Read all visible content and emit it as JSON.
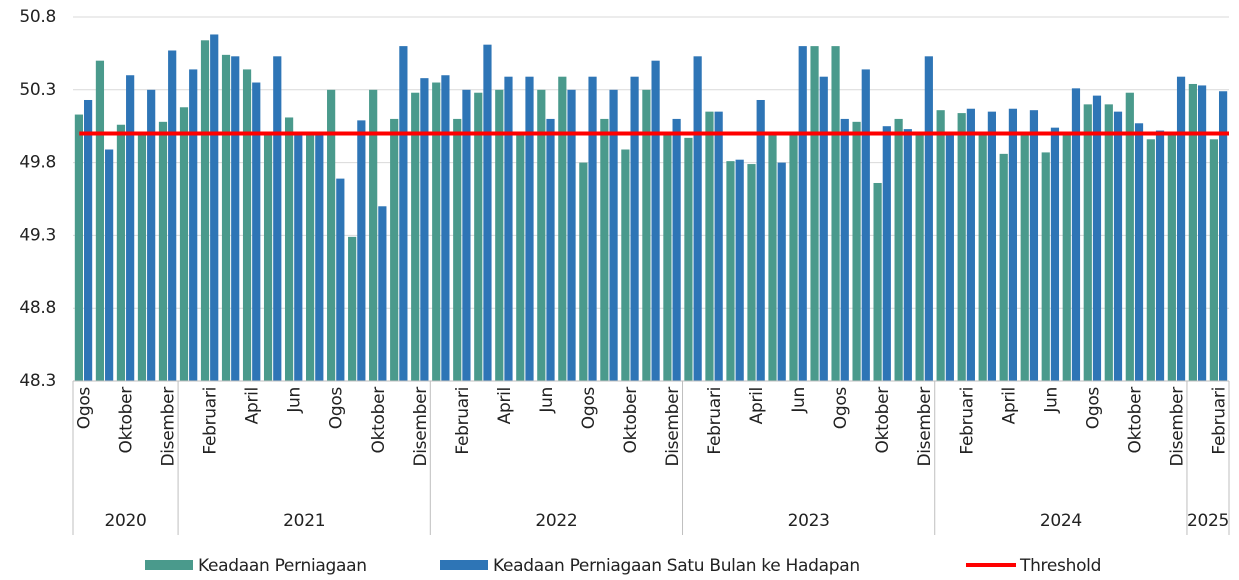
{
  "chart_data": {
    "type": "bar",
    "categories": [
      "Ogos",
      null,
      "Oktober",
      null,
      "Disember",
      null,
      "Februari",
      null,
      "April",
      null,
      "Jun",
      null,
      "Ogos",
      null,
      "Oktober",
      null,
      "Disember",
      null,
      "Februari",
      null,
      "April",
      null,
      "Jun",
      null,
      "Ogos",
      null,
      "Oktober",
      null,
      "Disember",
      null,
      "Februari",
      null,
      "April",
      null,
      "Jun",
      null,
      "Ogos",
      null,
      "Oktober",
      null,
      "Disember",
      null,
      "Februari",
      null,
      "April",
      null,
      "Jun",
      null,
      "Ogos",
      null,
      "Oktober",
      null,
      "Disember",
      null,
      "Februari"
    ],
    "category_groups": [
      "2020",
      "2020",
      "2020",
      "2020",
      "2020",
      "2021",
      "2021",
      "2021",
      "2021",
      "2021",
      "2021",
      "2021",
      "2021",
      "2021",
      "2021",
      "2021",
      "2021",
      "2022",
      "2022",
      "2022",
      "2022",
      "2022",
      "2022",
      "2022",
      "2022",
      "2022",
      "2022",
      "2022",
      "2022",
      "2023",
      "2023",
      "2023",
      "2023",
      "2023",
      "2023",
      "2023",
      "2023",
      "2023",
      "2023",
      "2023",
      "2023",
      "2024",
      "2024",
      "2024",
      "2024",
      "2024",
      "2024",
      "2024",
      "2024",
      "2024",
      "2024",
      "2024",
      "2024",
      "2025",
      "2025"
    ],
    "series": [
      {
        "name": "Keadaan Perniagaan",
        "color": "#4a9a8c",
        "values": [
          50.13,
          50.5,
          50.06,
          50.0,
          50.08,
          50.18,
          50.64,
          50.54,
          50.44,
          50.0,
          50.11,
          50.0,
          50.3,
          49.29,
          50.3,
          50.1,
          50.28,
          50.35,
          50.1,
          50.28,
          50.3,
          50.0,
          50.3,
          50.39,
          49.8,
          50.1,
          49.89,
          50.3,
          50.0,
          49.97,
          50.15,
          49.81,
          49.79,
          50.0,
          50.0,
          50.6,
          50.6,
          50.08,
          49.66,
          50.1,
          50.0,
          50.16,
          50.14,
          50.0,
          49.86,
          50.0,
          49.87,
          50.0,
          50.2,
          50.2,
          50.28,
          49.96,
          50.0,
          50.34,
          49.96
        ]
      },
      {
        "name": "Keadaan Perniagaan Satu Bulan ke Hadapan",
        "color": "#2e75b6",
        "values": [
          50.23,
          49.89,
          50.4,
          50.3,
          50.57,
          50.44,
          50.68,
          50.53,
          50.35,
          50.53,
          50.0,
          50.0,
          49.69,
          50.09,
          49.5,
          50.6,
          50.38,
          50.4,
          50.3,
          50.61,
          50.39,
          50.39,
          50.1,
          50.3,
          50.39,
          50.3,
          50.39,
          50.5,
          50.1,
          50.53,
          50.15,
          49.82,
          50.23,
          49.8,
          50.6,
          50.39,
          50.1,
          50.44,
          50.05,
          50.03,
          50.53,
          50.0,
          50.17,
          50.15,
          50.17,
          50.16,
          50.04,
          50.31,
          50.26,
          50.15,
          50.07,
          50.02,
          50.39,
          50.33,
          50.29
        ]
      }
    ],
    "threshold": {
      "name": "Threshold",
      "value": 50,
      "color": "#ff0000"
    },
    "ylim": [
      48.3,
      50.8
    ],
    "yticks": [
      48.3,
      48.8,
      49.3,
      49.8,
      50.3,
      50.8
    ],
    "grid": true
  }
}
